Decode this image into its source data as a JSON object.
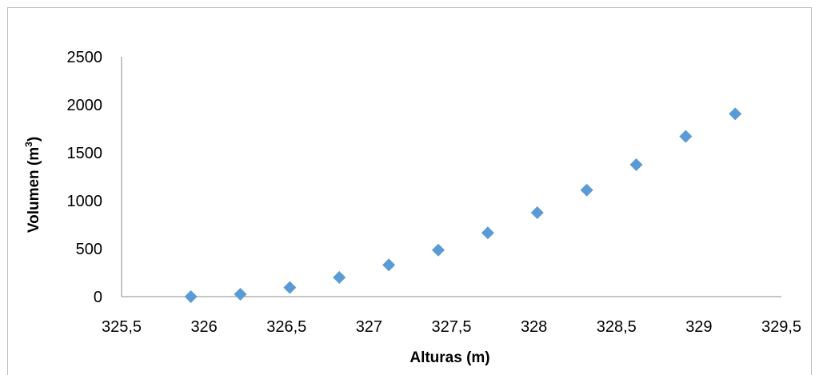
{
  "chart_data": {
    "type": "scatter",
    "xlabel": "Alturas (m)",
    "ylabel_text": "Volumen (m",
    "ylabel_sup": "3",
    "ylabel_close": ")",
    "xlim": [
      325.5,
      329.5
    ],
    "ylim": [
      0,
      2500
    ],
    "x_ticks": [
      325.5,
      326,
      326.5,
      327,
      327.5,
      328,
      328.5,
      329,
      329.5
    ],
    "x_tick_labels": [
      "325,5",
      "326",
      "326,5",
      "327",
      "327,5",
      "328",
      "328,5",
      "329",
      "329,5"
    ],
    "y_ticks": [
      0,
      500,
      1000,
      1500,
      2000,
      2500
    ],
    "y_tick_labels": [
      "0",
      "500",
      "1000",
      "1500",
      "2000",
      "2500"
    ],
    "grid": false,
    "marker": "diamond",
    "marker_color": "#5b9bd5",
    "points": [
      {
        "x": 325.92,
        "y": 0
      },
      {
        "x": 326.22,
        "y": 25
      },
      {
        "x": 326.52,
        "y": 95
      },
      {
        "x": 326.82,
        "y": 200
      },
      {
        "x": 327.12,
        "y": 330
      },
      {
        "x": 327.42,
        "y": 485
      },
      {
        "x": 327.72,
        "y": 665
      },
      {
        "x": 328.02,
        "y": 875
      },
      {
        "x": 328.32,
        "y": 1110
      },
      {
        "x": 328.62,
        "y": 1375
      },
      {
        "x": 328.92,
        "y": 1670
      },
      {
        "x": 329.22,
        "y": 1905
      }
    ]
  }
}
